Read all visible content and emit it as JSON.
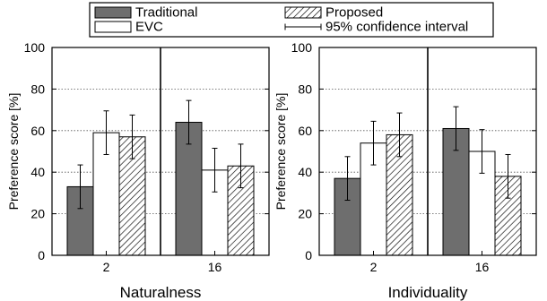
{
  "legend": {
    "entries": [
      {
        "label": "Traditional",
        "style": "solid",
        "color": "#6e6e6e"
      },
      {
        "label": "Proposed",
        "style": "hatched",
        "color": "#000000"
      },
      {
        "label": "EVC",
        "style": "open",
        "color": "#ffffff"
      },
      {
        "label": "95% confidence interval",
        "style": "errorbar",
        "color": "#000000"
      }
    ]
  },
  "chart_data": [
    {
      "type": "bar",
      "title": "",
      "xlabel": "Naturalness",
      "ylabel": "Preference score [%]",
      "ylim": [
        0,
        100
      ],
      "yticks": [
        "0",
        "20",
        "40",
        "60",
        "80",
        "100"
      ],
      "grid": "horizontal-dotted",
      "categories": [
        "2",
        "16"
      ],
      "series": [
        {
          "name": "Traditional",
          "values": [
            33,
            64
          ],
          "ci": [
            10.5,
            10.5
          ]
        },
        {
          "name": "EVC",
          "values": [
            59,
            41
          ],
          "ci": [
            10.5,
            10.5
          ]
        },
        {
          "name": "Proposed",
          "values": [
            57,
            43
          ],
          "ci": [
            10.5,
            10.5
          ]
        }
      ]
    },
    {
      "type": "bar",
      "title": "",
      "xlabel": "Individuality",
      "ylabel": "Preference score [%]",
      "ylim": [
        0,
        100
      ],
      "yticks": [
        "0",
        "20",
        "40",
        "60",
        "80",
        "100"
      ],
      "grid": "horizontal-dotted",
      "categories": [
        "2",
        "16"
      ],
      "series": [
        {
          "name": "Traditional",
          "values": [
            37,
            61
          ],
          "ci": [
            10.5,
            10.5
          ]
        },
        {
          "name": "EVC",
          "values": [
            54,
            50
          ],
          "ci": [
            10.5,
            10.5
          ]
        },
        {
          "name": "Proposed",
          "values": [
            58,
            38
          ],
          "ci": [
            10.5,
            10.5
          ]
        }
      ]
    }
  ]
}
